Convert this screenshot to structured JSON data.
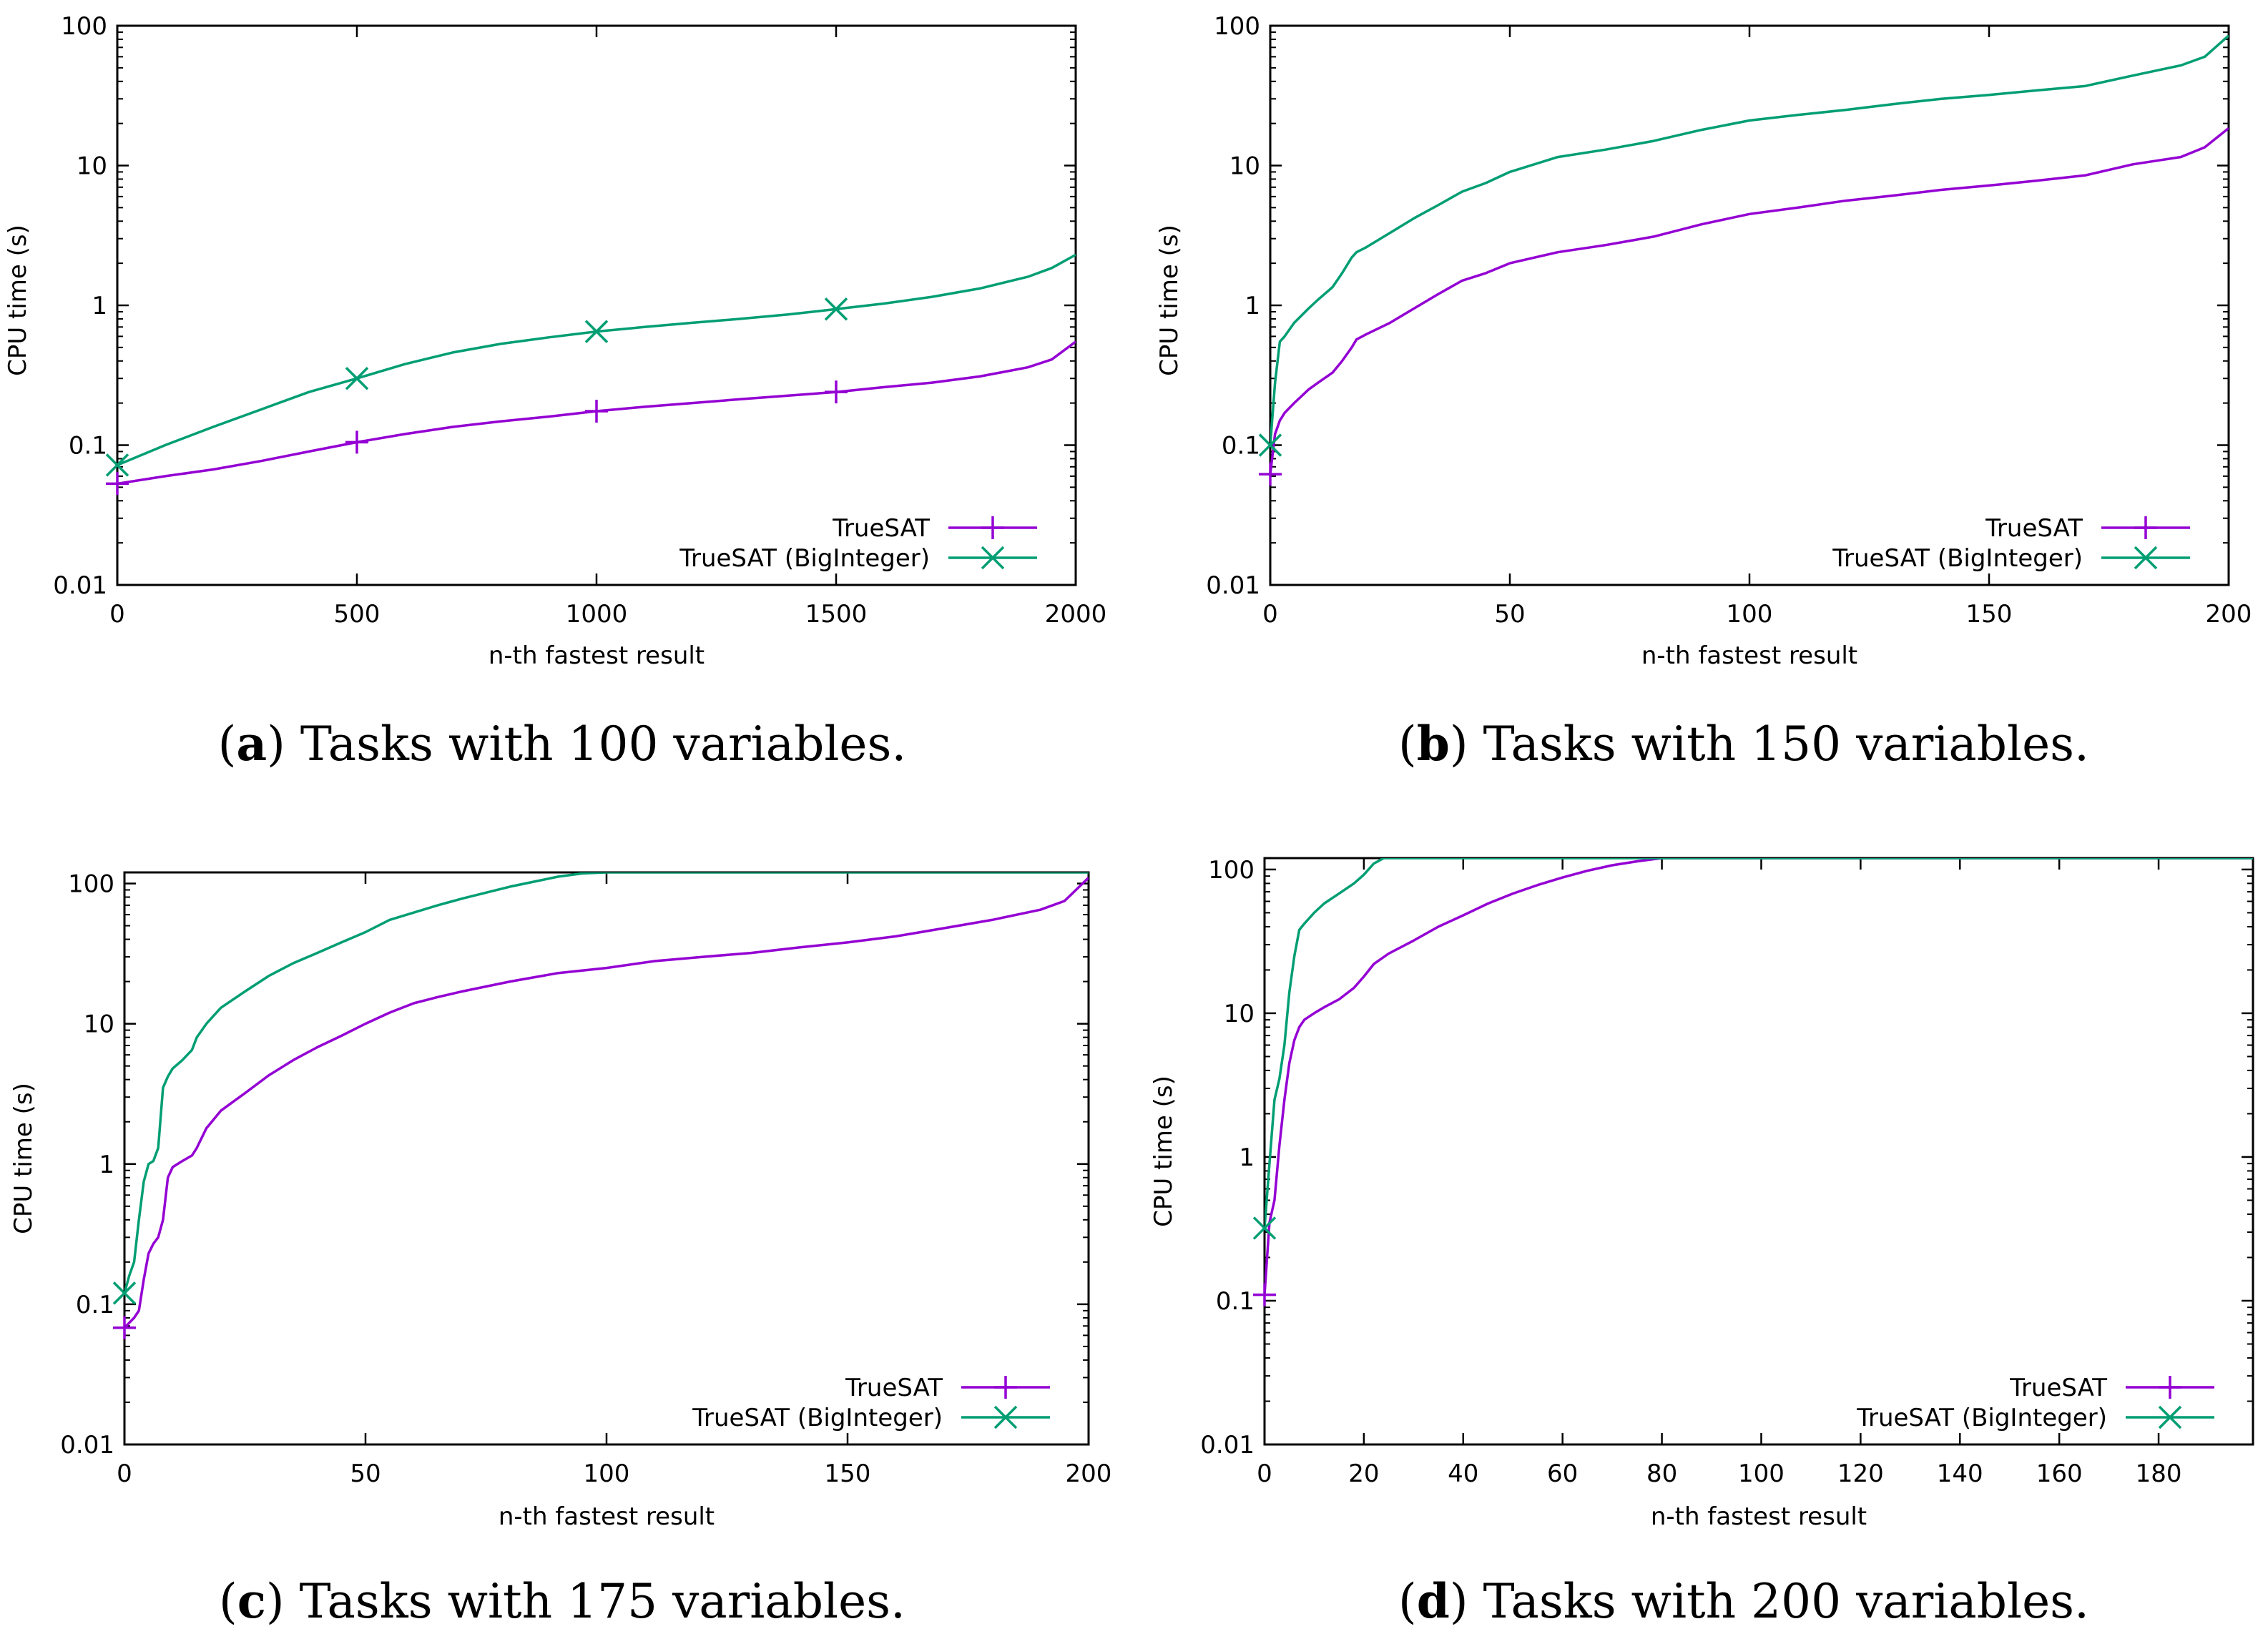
{
  "colors": {
    "truesat": "#9400d3",
    "biginteger": "#009e73",
    "axis": "#000000"
  },
  "chart_data": [
    {
      "type": "line",
      "caption": {
        "letter": "a",
        "text": "Tasks with 100 variables."
      },
      "xlabel": "n-th fastest result",
      "ylabel": "CPU time (s)",
      "yscale": "log",
      "xlim": [
        0,
        2000
      ],
      "ylim": [
        0.01,
        100
      ],
      "xticks": [
        0,
        500,
        1000,
        1500,
        2000
      ],
      "xtick_labels": [
        "0",
        "500",
        "1000",
        "1500",
        "2000"
      ],
      "yticks": [
        0.01,
        0.1,
        1,
        10,
        100
      ],
      "ytick_labels": [
        "0.01",
        "0.1",
        "1",
        "10",
        "100"
      ],
      "legend_position": "bottom-right",
      "series": [
        {
          "name": "TrueSAT",
          "marker": "plus",
          "x": [
            0,
            100,
            200,
            300,
            400,
            500,
            600,
            700,
            800,
            900,
            1000,
            1100,
            1200,
            1300,
            1400,
            1500,
            1600,
            1700,
            1800,
            1900,
            1950,
            2000
          ],
          "y": [
            0.053,
            0.06,
            0.067,
            0.077,
            0.09,
            0.105,
            0.12,
            0.135,
            0.148,
            0.16,
            0.175,
            0.188,
            0.2,
            0.213,
            0.226,
            0.24,
            0.26,
            0.28,
            0.31,
            0.36,
            0.41,
            0.55
          ],
          "marker_x": [
            0,
            500,
            1000,
            1500
          ]
        },
        {
          "name": "TrueSAT (BigInteger)",
          "marker": "cross",
          "x": [
            0,
            100,
            200,
            300,
            400,
            500,
            600,
            700,
            800,
            900,
            1000,
            1100,
            1200,
            1300,
            1400,
            1500,
            1600,
            1700,
            1800,
            1900,
            1950,
            2000
          ],
          "y": [
            0.072,
            0.1,
            0.135,
            0.18,
            0.24,
            0.3,
            0.38,
            0.46,
            0.53,
            0.59,
            0.65,
            0.7,
            0.75,
            0.8,
            0.86,
            0.94,
            1.03,
            1.15,
            1.32,
            1.6,
            1.85,
            2.3
          ],
          "marker_x": [
            0,
            500,
            1000,
            1500
          ]
        }
      ]
    },
    {
      "type": "line",
      "caption": {
        "letter": "b",
        "text": "Tasks with 150 variables."
      },
      "xlabel": "n-th fastest result",
      "ylabel": "CPU time (s)",
      "yscale": "log",
      "xlim": [
        0,
        200
      ],
      "ylim": [
        0.01,
        100
      ],
      "xticks": [
        0,
        50,
        100,
        150,
        200
      ],
      "xtick_labels": [
        "0",
        "50",
        "100",
        "150",
        "200"
      ],
      "yticks": [
        0.01,
        0.1,
        1,
        10,
        100
      ],
      "ytick_labels": [
        "0.01",
        "0.1",
        "1",
        "10",
        "100"
      ],
      "legend_position": "bottom-right",
      "series": [
        {
          "name": "TrueSAT",
          "marker": "plus",
          "x": [
            0,
            1,
            2,
            3,
            5,
            8,
            10,
            13,
            15,
            17,
            18,
            20,
            25,
            30,
            35,
            40,
            45,
            50,
            60,
            70,
            80,
            90,
            100,
            110,
            120,
            130,
            140,
            150,
            160,
            170,
            180,
            190,
            195,
            200
          ],
          "y": [
            0.062,
            0.12,
            0.15,
            0.17,
            0.2,
            0.25,
            0.28,
            0.33,
            0.4,
            0.5,
            0.57,
            0.62,
            0.75,
            0.95,
            1.2,
            1.5,
            1.7,
            2.0,
            2.4,
            2.7,
            3.1,
            3.8,
            4.5,
            5.0,
            5.6,
            6.1,
            6.7,
            7.2,
            7.8,
            8.5,
            10.2,
            11.5,
            13.5,
            18.5
          ],
          "marker_x": [
            0
          ]
        },
        {
          "name": "TrueSAT (BigInteger)",
          "marker": "cross",
          "x": [
            0,
            1,
            2,
            3,
            5,
            8,
            10,
            13,
            15,
            17,
            18,
            20,
            25,
            30,
            35,
            40,
            45,
            50,
            60,
            70,
            80,
            90,
            100,
            110,
            120,
            130,
            140,
            150,
            160,
            170,
            180,
            190,
            195,
            200
          ],
          "y": [
            0.1,
            0.28,
            0.55,
            0.6,
            0.75,
            0.95,
            1.1,
            1.35,
            1.7,
            2.2,
            2.4,
            2.6,
            3.3,
            4.2,
            5.2,
            6.5,
            7.5,
            9.0,
            11.5,
            13.0,
            15.0,
            18.0,
            21.0,
            23.0,
            25.0,
            27.5,
            30.0,
            32.0,
            34.5,
            37.0,
            44.0,
            52.0,
            60.0,
            85.0
          ],
          "marker_x": [
            0
          ]
        }
      ]
    },
    {
      "type": "line",
      "caption": {
        "letter": "c",
        "text": "Tasks with 175 variables."
      },
      "xlabel": "n-th fastest result",
      "ylabel": "CPU time (s)",
      "yscale": "log",
      "xlim": [
        0,
        200
      ],
      "ylim": [
        0.01,
        120
      ],
      "xticks": [
        0,
        50,
        100,
        150,
        200
      ],
      "xtick_labels": [
        "0",
        "50",
        "100",
        "150",
        "200"
      ],
      "yticks": [
        0.01,
        0.1,
        1,
        10,
        100
      ],
      "ytick_labels": [
        "0.01",
        "0.1",
        "1",
        "10",
        "100"
      ],
      "legend_position": "bottom-right",
      "series": [
        {
          "name": "TrueSAT",
          "marker": "plus",
          "x": [
            0,
            2,
            3,
            4,
            5,
            6,
            7,
            8,
            9,
            10,
            12,
            14,
            15,
            17,
            20,
            25,
            30,
            35,
            40,
            45,
            50,
            55,
            60,
            65,
            70,
            80,
            90,
            100,
            110,
            120,
            130,
            140,
            150,
            160,
            170,
            180,
            190,
            195,
            200
          ],
          "y": [
            0.068,
            0.08,
            0.09,
            0.15,
            0.23,
            0.27,
            0.3,
            0.4,
            0.8,
            0.95,
            1.05,
            1.15,
            1.3,
            1.8,
            2.4,
            3.2,
            4.3,
            5.5,
            6.8,
            8.2,
            10.0,
            12.0,
            14.0,
            15.5,
            17.0,
            20.0,
            23.0,
            25.0,
            28.0,
            30.0,
            32.0,
            35.0,
            38.0,
            42.0,
            48.0,
            55.0,
            65.0,
            75.0,
            110.0
          ],
          "marker_x": [
            0
          ]
        },
        {
          "name": "TrueSAT (BigInteger)",
          "marker": "cross",
          "x": [
            0,
            1,
            2,
            3,
            4,
            5,
            6,
            7,
            8,
            9,
            10,
            12,
            14,
            15,
            17,
            20,
            25,
            30,
            35,
            40,
            45,
            50,
            55,
            60,
            65,
            70,
            80,
            90,
            95,
            100,
            150,
            200
          ],
          "y": [
            0.12,
            0.16,
            0.2,
            0.4,
            0.75,
            1.0,
            1.05,
            1.3,
            3.5,
            4.2,
            4.8,
            5.5,
            6.5,
            8.0,
            10.0,
            13.0,
            17.0,
            22.0,
            27.0,
            32.0,
            38.0,
            45.0,
            55.0,
            62.0,
            70.0,
            78.0,
            95.0,
            112.0,
            118.0,
            120.0,
            120.0,
            120.0
          ],
          "marker_x": [
            0
          ]
        }
      ]
    },
    {
      "type": "line",
      "caption": {
        "letter": "d",
        "text": "Tasks with 200 variables."
      },
      "xlabel": "n-th fastest result",
      "ylabel": "CPU time (s)",
      "yscale": "log",
      "xlim": [
        0,
        199
      ],
      "ylim": [
        0.01,
        120
      ],
      "xticks": [
        0,
        20,
        40,
        60,
        80,
        100,
        120,
        140,
        160,
        180
      ],
      "xtick_labels": [
        "0",
        "20",
        "40",
        "60",
        "80",
        "100",
        "120",
        "140",
        "160",
        "180"
      ],
      "yticks": [
        0.01,
        0.1,
        1,
        10,
        100
      ],
      "ytick_labels": [
        "0.01",
        "0.1",
        "1",
        "10",
        "100"
      ],
      "legend_position": "bottom-right",
      "series": [
        {
          "name": "TrueSAT",
          "marker": "plus",
          "x": [
            0,
            1,
            2,
            3,
            4,
            5,
            6,
            7,
            8,
            10,
            12,
            15,
            18,
            20,
            22,
            25,
            30,
            35,
            40,
            45,
            50,
            55,
            60,
            65,
            70,
            75,
            80,
            199
          ],
          "y": [
            0.11,
            0.35,
            0.5,
            1.2,
            2.5,
            4.5,
            6.5,
            8.0,
            9.0,
            10.0,
            11.0,
            12.5,
            15.0,
            18.0,
            22.0,
            26.0,
            32.0,
            40.0,
            48.0,
            58.0,
            68.0,
            78.0,
            88.0,
            98.0,
            107.0,
            114.0,
            120.0,
            120.0
          ],
          "marker_x": [
            0
          ]
        },
        {
          "name": "TrueSAT (BigInteger)",
          "marker": "cross",
          "x": [
            0,
            1,
            2,
            3,
            4,
            5,
            6,
            7,
            8,
            10,
            12,
            15,
            18,
            20,
            22,
            24,
            199
          ],
          "y": [
            0.32,
            0.9,
            2.5,
            3.5,
            6.0,
            14.0,
            25.0,
            38.0,
            42.0,
            50.0,
            58.0,
            68.0,
            80.0,
            92.0,
            110.0,
            120.0,
            120.0
          ],
          "marker_x": [
            0
          ]
        }
      ]
    }
  ]
}
